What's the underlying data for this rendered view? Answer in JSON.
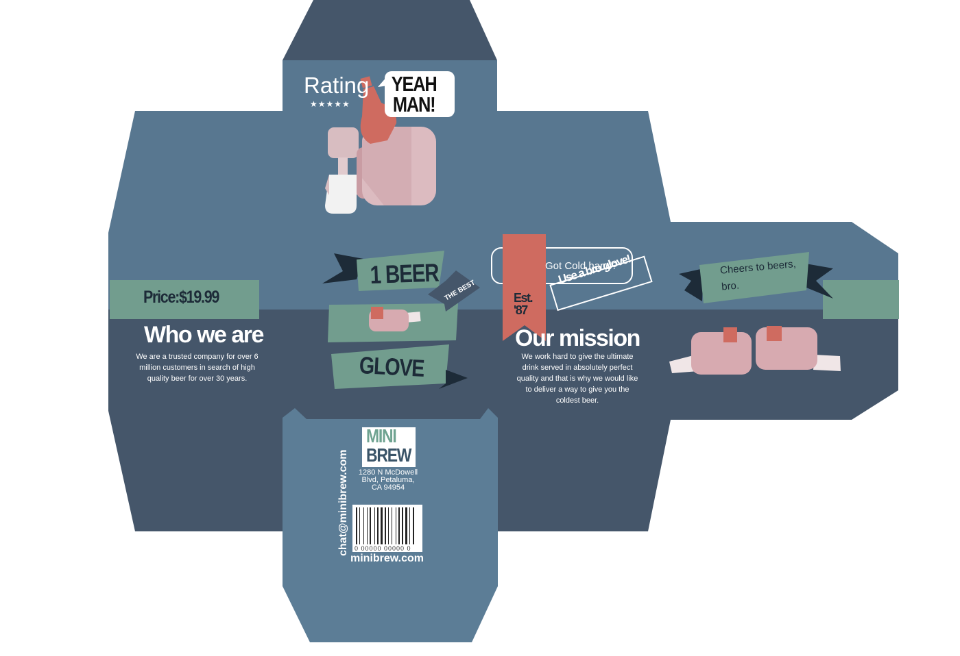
{
  "rating": {
    "title": "Rating",
    "stars": "★★★★★"
  },
  "speech_bubble": {
    "text": "YEAH MAN!"
  },
  "price": {
    "text": "Price:$19.99"
  },
  "who": {
    "title": "Who we are",
    "text": "We are a trusted company for over 6 million customers in search of high quality beer for over 30 years."
  },
  "banners": {
    "top": "1 BEER",
    "bottom": "GLOVE",
    "arrow": "THE BEST"
  },
  "promo": {
    "question": "Got Cold hand?",
    "stamp": "Use a bro glove!"
  },
  "est": {
    "line1": "Est.",
    "line2": "'87"
  },
  "mission": {
    "title": "Our mission",
    "text": "We work hard to give the ultimate drink served in absolutely perfect quality and that is why we would like to deliver a way to give you the coldest beer."
  },
  "cheers": {
    "text": "Cheers to beers, bro."
  },
  "logo": {
    "line1": "MINI",
    "line2": "BREW"
  },
  "address": {
    "text": "1280 N McDowell Blvd, Petaluma, CA 94954"
  },
  "barcode": {
    "number": "0  00000 00000  0"
  },
  "contact": {
    "website": "minibrew.com",
    "email": "chat@minibrew.com"
  },
  "colors": {
    "panel_light": "#587790",
    "panel_dark": "#45566a",
    "flap_top": "#45566a",
    "flap_bottom": "#5c7d96",
    "accent_green": "#729d8e",
    "accent_red": "#cf6b60",
    "navy": "#1d2b38",
    "skin": "#d7aab0"
  }
}
